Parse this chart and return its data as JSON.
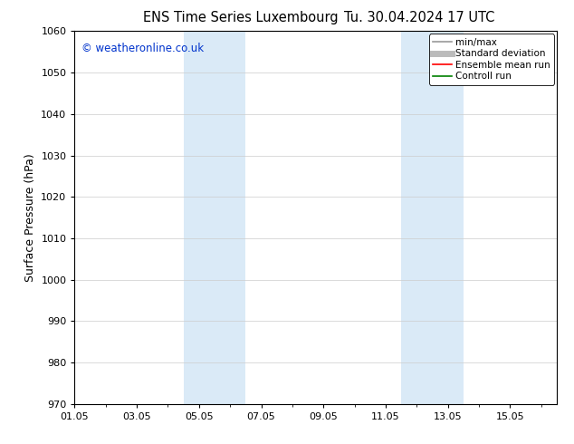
{
  "title_left": "ENS Time Series Luxembourg",
  "title_right": "Tu. 30.04.2024 17 UTC",
  "ylabel": "Surface Pressure (hPa)",
  "ylim": [
    970,
    1060
  ],
  "yticks": [
    970,
    980,
    990,
    1000,
    1010,
    1020,
    1030,
    1040,
    1050,
    1060
  ],
  "xtick_labels": [
    "01.05",
    "03.05",
    "05.05",
    "07.05",
    "09.05",
    "11.05",
    "13.05",
    "15.05"
  ],
  "xtick_positions": [
    0,
    2,
    4,
    6,
    8,
    10,
    12,
    14
  ],
  "xlim": [
    0,
    15.5
  ],
  "shaded_bands": [
    {
      "xstart": 3.5,
      "xend": 5.5
    },
    {
      "xstart": 10.5,
      "xend": 12.5
    }
  ],
  "shaded_color": "#daeaf7",
  "background_color": "#ffffff",
  "watermark": "© weatheronline.co.uk",
  "watermark_color": "#0033cc",
  "legend_items": [
    {
      "label": "min/max",
      "color": "#999999",
      "lw": 1.2
    },
    {
      "label": "Standard deviation",
      "color": "#bbbbbb",
      "lw": 5
    },
    {
      "label": "Ensemble mean run",
      "color": "#ff0000",
      "lw": 1.2
    },
    {
      "label": "Controll run",
      "color": "#008000",
      "lw": 1.2
    }
  ],
  "title_fontsize": 10.5,
  "ylabel_fontsize": 9,
  "tick_fontsize": 8,
  "legend_fontsize": 7.5,
  "watermark_fontsize": 8.5
}
